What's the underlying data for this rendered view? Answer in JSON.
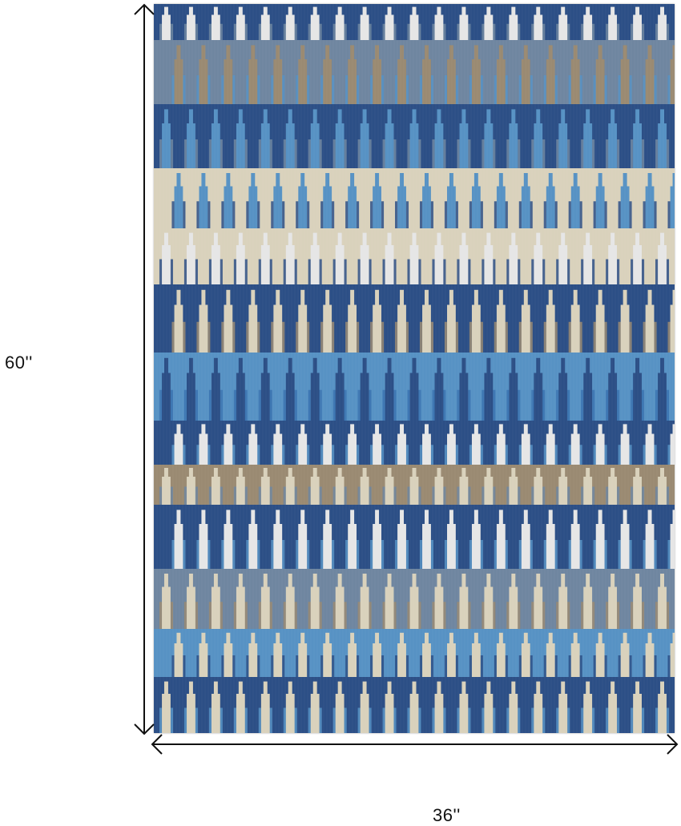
{
  "dimensions": {
    "height_label": "60''",
    "width_label": "36''"
  },
  "rug": {
    "columns": 21,
    "palette": {
      "navy": "#2c4f86",
      "blue": "#3a72b0",
      "light_blue": "#5792c4",
      "slate": "#6f86a0",
      "taupe": "#9a8a72",
      "cream": "#d9d2bc",
      "ivory": "#e6e6e6"
    }
  }
}
